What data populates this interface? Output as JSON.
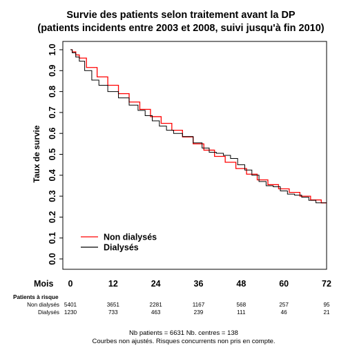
{
  "chart_data": {
    "type": "line",
    "title_line1": "Survie des patients selon traitement avant la DP",
    "title_line2": "(patients incidents entre 2003 et 2008, suivi jusqu'à fin 2010)",
    "xlabel": "Mois",
    "ylabel": "Taux de survie",
    "xlim": [
      0,
      72
    ],
    "ylim": [
      0,
      1
    ],
    "x_ticks": [
      "0",
      "12",
      "24",
      "36",
      "48",
      "60",
      "72"
    ],
    "y_ticks": [
      "0.0",
      "0.1",
      "0.2",
      "0.3",
      "0.4",
      "0.5",
      "0.6",
      "0.7",
      "0.8",
      "0.9",
      "1.0"
    ],
    "legend_position": "bottom-left",
    "series": [
      {
        "name": "Non dialysés",
        "color": "#ff0000",
        "x": [
          0,
          1,
          2,
          3,
          6,
          9,
          12,
          15,
          18,
          21,
          24,
          27,
          30,
          33,
          36,
          39,
          42,
          45,
          48,
          51,
          54,
          57,
          60,
          63,
          66,
          69,
          72
        ],
        "y": [
          1.0,
          0.99,
          0.975,
          0.96,
          0.915,
          0.87,
          0.83,
          0.79,
          0.75,
          0.715,
          0.68,
          0.648,
          0.615,
          0.583,
          0.55,
          0.52,
          0.49,
          0.462,
          0.432,
          0.405,
          0.378,
          0.355,
          0.335,
          0.318,
          0.3,
          0.282,
          0.268
        ]
      },
      {
        "name": "Dialysés",
        "color": "#000000",
        "x": [
          0,
          1,
          2,
          3,
          5,
          7,
          9,
          12,
          15,
          18,
          20,
          22,
          24,
          26,
          28,
          30,
          33,
          36,
          38,
          40,
          42,
          44,
          46,
          48,
          50,
          52,
          54,
          56,
          58,
          60,
          62,
          64,
          66,
          68,
          70,
          72
        ],
        "y": [
          1.0,
          0.985,
          0.965,
          0.945,
          0.9,
          0.855,
          0.83,
          0.8,
          0.77,
          0.735,
          0.71,
          0.685,
          0.66,
          0.635,
          0.615,
          0.6,
          0.585,
          0.555,
          0.53,
          0.51,
          0.505,
          0.495,
          0.48,
          0.45,
          0.425,
          0.4,
          0.37,
          0.35,
          0.345,
          0.325,
          0.31,
          0.305,
          0.295,
          0.28,
          0.268,
          0.268
        ]
      }
    ],
    "risk_table": {
      "header": "Patients à risque",
      "rows": [
        {
          "label": "Non dialysés",
          "values": [
            "5401",
            "3651",
            "2281",
            "1167",
            "568",
            "257",
            "95"
          ]
        },
        {
          "label": "Dialysés",
          "values": [
            "1230",
            "733",
            "463",
            "239",
            "111",
            "46",
            "21"
          ]
        }
      ]
    },
    "footnote_line1": "Nb patients = 6631     Nb. centres = 138",
    "footnote_line2": "Courbes non ajustés. Risques concurrents non pris en compte."
  }
}
